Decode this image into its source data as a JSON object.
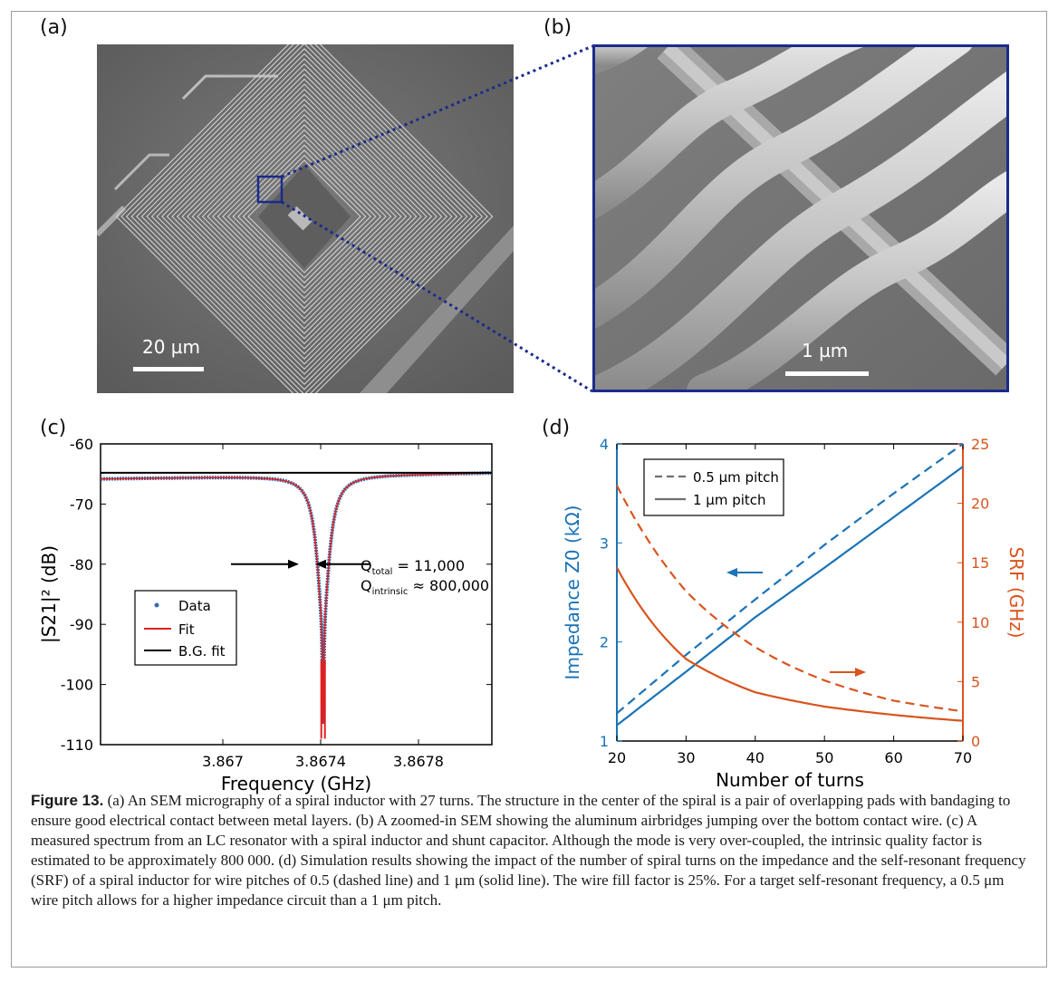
{
  "panels": {
    "a": {
      "label": "(a)",
      "scalebar": "20 µm"
    },
    "b": {
      "label": "(b)",
      "scalebar": "1 µm"
    },
    "c": {
      "label": "(c)"
    },
    "d": {
      "label": "(d)"
    }
  },
  "chart_data": [
    {
      "panel": "c",
      "type": "line",
      "xlabel": "Frequency (GHz)",
      "ylabel": "|S21|² (dB)",
      "xlim": [
        3.8665,
        3.8681
      ],
      "ylim": [
        -110,
        -60
      ],
      "xticks": [
        "3.867",
        "3.8674",
        "3.8678"
      ],
      "xtick_values": [
        3.867,
        3.8674,
        3.8678
      ],
      "yticks": [
        -60,
        -70,
        -80,
        -90,
        -100,
        -110
      ],
      "legend": [
        "Data",
        "Fit",
        "B.G. fit"
      ],
      "legend_position": "lower-left",
      "annotation": {
        "q_total": "Q",
        "q_total_sub": "total",
        "q_total_val": " = 11,000",
        "q_int": "Q",
        "q_int_sub": "intrinsic",
        "q_int_val": " ≈ 800,000"
      },
      "resonance": {
        "f0": 3.86741,
        "min_db": -107,
        "baseline_db": -64.8,
        "half_width_ghz": 6e-05
      },
      "bg_fit": {
        "y": -64.8
      },
      "grid": false
    },
    {
      "panel": "d",
      "type": "line",
      "xlabel": "Number of turns",
      "ylabel_left": "Impedance Z0 (kΩ)",
      "ylabel_right": "SRF (GHz)",
      "xlim": [
        20,
        70
      ],
      "ylim_left": [
        1,
        4
      ],
      "ylim_right": [
        0,
        25
      ],
      "xticks": [
        20,
        30,
        40,
        50,
        60,
        70
      ],
      "yticks_left": [
        1,
        2,
        3,
        4
      ],
      "yticks_right": [
        0,
        5,
        10,
        15,
        20,
        25
      ],
      "legend": [
        "0.5 µm pitch",
        "1 µm pitch"
      ],
      "legend_position": "top-left",
      "x": [
        20,
        30,
        40,
        50,
        60,
        70
      ],
      "series": [
        {
          "name": "0.5 µm pitch",
          "axis": "left",
          "style": "dashed",
          "values": [
            1.28,
            1.87,
            2.43,
            2.98,
            3.5,
            4.0
          ]
        },
        {
          "name": "1 µm pitch",
          "axis": "left",
          "style": "solid",
          "values": [
            1.16,
            1.7,
            2.25,
            2.75,
            3.26,
            3.77
          ]
        },
        {
          "name": "0.5 µm pitch",
          "axis": "right",
          "style": "dashed",
          "values": [
            21.5,
            12.6,
            7.9,
            5.1,
            3.4,
            2.5
          ]
        },
        {
          "name": "1 µm pitch",
          "axis": "right",
          "style": "solid",
          "values": [
            14.6,
            6.9,
            4.1,
            2.9,
            2.2,
            1.7
          ]
        }
      ],
      "colors": {
        "impedance": "#1a73b5",
        "srf": "#d9541e"
      },
      "grid": false
    }
  ],
  "caption": {
    "bold": "Figure 13.",
    "text": "  (a) An SEM micrography of a spiral inductor with 27 turns. The structure in the center of the spiral is a pair of overlapping pads with bandaging to ensure good electrical contact between metal layers. (b) A zoomed-in SEM showing the aluminum airbridges jumping over the bottom contact wire. (c) A measured spectrum from an LC resonator with a spiral inductor and shunt capacitor. Although the mode is very over-coupled, the intrinsic quality factor is estimated to be approximately 800 000. (d) Simulation results showing the impact of the number of spiral turns on the impedance and the self-resonant frequency (SRF) of a spiral inductor for wire pitches of 0.5 (dashed line) and 1 μm (solid line). The wire fill factor is 25%. For a target self-resonant frequency, a 0.5 μm wire pitch allows for a higher impedance circuit than a 1 μm pitch."
  }
}
